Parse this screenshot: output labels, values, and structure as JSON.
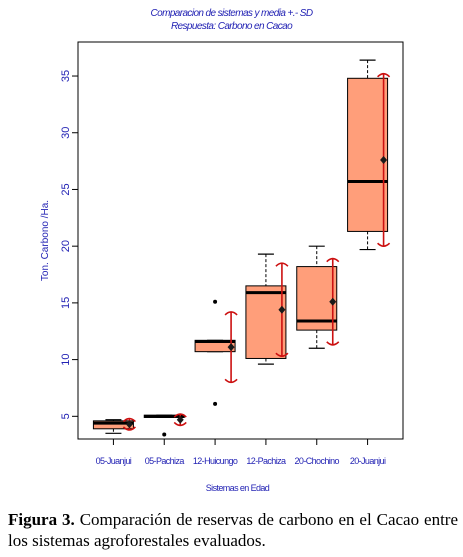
{
  "chart_data": {
    "type": "box",
    "title": "Comparacion de sistemas y media +.- SD",
    "subtitle": "Respuesta: Carbono en Cacao",
    "xlabel": "Sistemas en Edad",
    "ylabel": "Ton. Carbono /Ha.",
    "ylim": [
      3,
      38
    ],
    "yticks": [
      5,
      10,
      15,
      20,
      25,
      30,
      35
    ],
    "categories": [
      "05-Juanjui",
      "05-Pachiza",
      "12-Huicungo",
      "12-Pachiza",
      "20-Chochino",
      "20-Juanjui"
    ],
    "boxes": [
      {
        "min": 3.5,
        "q1": 3.9,
        "median": 4.4,
        "q3": 4.6,
        "max": 4.7,
        "outliers": []
      },
      {
        "min": 4.9,
        "q1": 4.9,
        "median": 5.0,
        "q3": 5.1,
        "max": 5.1,
        "outliers": [
          3.4
        ]
      },
      {
        "min": 10.7,
        "q1": 10.7,
        "median": 11.6,
        "q3": 11.7,
        "max": 11.7,
        "outliers": [
          15.1,
          6.1
        ]
      },
      {
        "min": 9.6,
        "q1": 10.1,
        "median": 15.9,
        "q3": 16.5,
        "max": 19.3,
        "outliers": []
      },
      {
        "min": 11.0,
        "q1": 12.6,
        "median": 13.4,
        "q3": 18.2,
        "max": 20.0,
        "outliers": []
      },
      {
        "min": 19.7,
        "q1": 21.3,
        "median": 25.7,
        "q3": 34.8,
        "max": 36.4,
        "outliers": []
      }
    ],
    "mean_sd": [
      {
        "mean": 4.3,
        "low": 3.8,
        "high": 4.8
      },
      {
        "mean": 4.7,
        "low": 4.2,
        "high": 5.2
      },
      {
        "mean": 11.1,
        "low": 8.0,
        "high": 14.2
      },
      {
        "mean": 14.4,
        "low": 10.3,
        "high": 18.5
      },
      {
        "mean": 15.1,
        "low": 11.3,
        "high": 18.9
      },
      {
        "mean": 27.6,
        "low": 20.0,
        "high": 35.2
      }
    ],
    "colors": {
      "box_fill": "#ff9e7a",
      "box_stroke": "#000000",
      "median": "#000000",
      "sd_bar": "#cc1010",
      "text": "#2323b4"
    },
    "grid": false
  },
  "caption": {
    "label": "Figura 3.",
    "text": " Comparación de reservas de carbono en el Cacao entre los sistemas agroforestales evaluados."
  }
}
